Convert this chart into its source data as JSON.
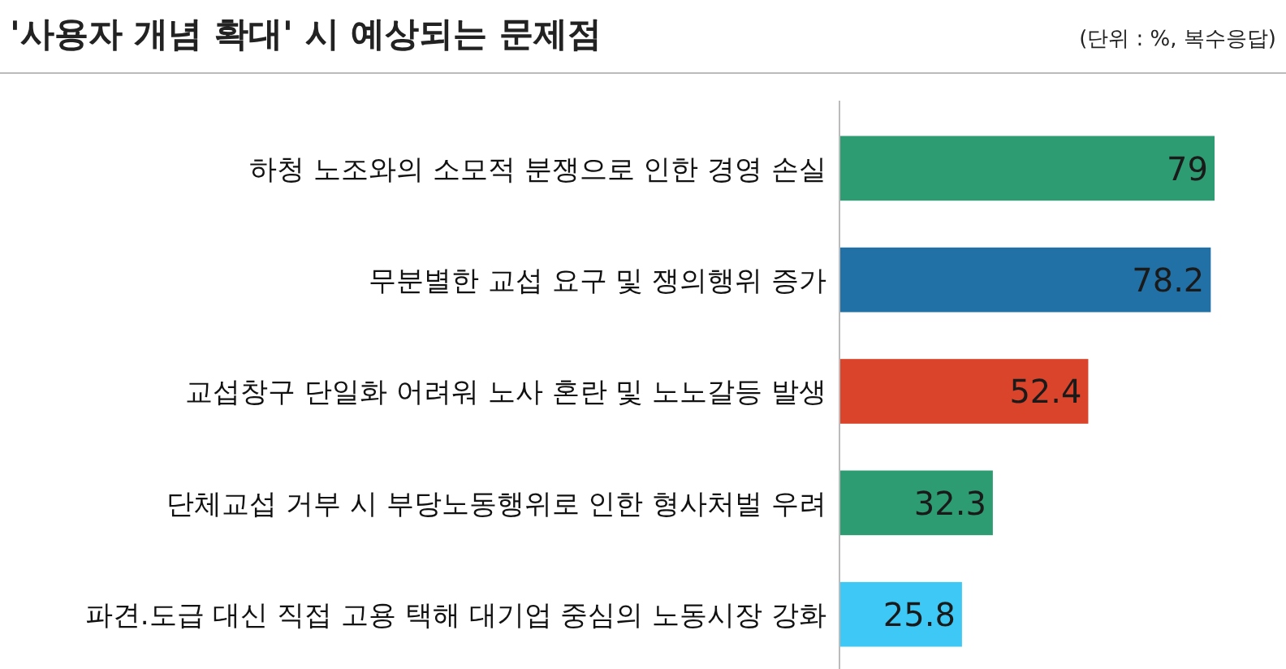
{
  "chart_data": {
    "type": "bar",
    "orientation": "horizontal",
    "title": "'사용자 개념 확대' 시 예상되는 문제점",
    "annotations": [
      "(단위 : %, 복수응답)"
    ],
    "categories": [
      "하청 노조와의 소모적 분쟁으로 인한 경영 손실",
      "무분별한 교섭 요구 및 쟁의행위 증가",
      "교섭창구 단일화 어려워 노사 혼란 및 노노갈등 발생",
      "단체교섭 거부 시 부당노동행위로 인한 형사처벌 우려",
      "파견.도급 대신 직접 고용 택해 대기업 중심의 노동시장 강화"
    ],
    "values": [
      79,
      78.2,
      52.4,
      32.3,
      25.8
    ],
    "colors": [
      "#2e9c73",
      "#2271a6",
      "#d9442a",
      "#2e9c73",
      "#3ec8f5"
    ],
    "data_labels": true
  }
}
